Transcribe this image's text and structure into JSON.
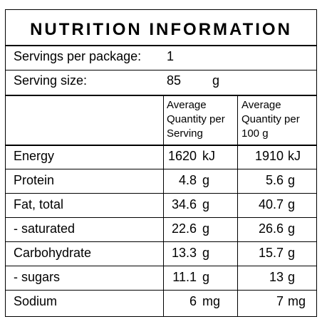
{
  "title": "NUTRITION INFORMATION",
  "servings_label": "Servings per package:",
  "servings_value": "1",
  "serving_size_label": "Serving size:",
  "serving_size_value": "85",
  "serving_size_unit": "g",
  "col_headers": {
    "per_serving": [
      "Average",
      "Quantity per",
      "Serving"
    ],
    "per_100g": [
      "Average",
      "Quantity per",
      "100 g"
    ]
  },
  "rows": [
    {
      "label": "Energy",
      "serving": "1620",
      "serving_unit": "kJ",
      "per100": "1910",
      "per100_unit": "kJ"
    },
    {
      "label": "Protein",
      "serving": "4.8",
      "serving_unit": "g",
      "per100": "5.6",
      "per100_unit": "g"
    },
    {
      "label": "Fat, total",
      "serving": "34.6",
      "serving_unit": "g",
      "per100": "40.7",
      "per100_unit": "g"
    },
    {
      "label": "- saturated",
      "serving": "22.6",
      "serving_unit": "g",
      "per100": "26.6",
      "per100_unit": "g"
    },
    {
      "label": "Carbohydrate",
      "serving": "13.3",
      "serving_unit": "g",
      "per100": "15.7",
      "per100_unit": "g"
    },
    {
      "label": "- sugars",
      "serving": "11.1",
      "serving_unit": "g",
      "per100": "13",
      "per100_unit": "g"
    },
    {
      "label": "Sodium",
      "serving": "6",
      "serving_unit": "mg",
      "per100": "7",
      "per100_unit": "mg"
    }
  ]
}
